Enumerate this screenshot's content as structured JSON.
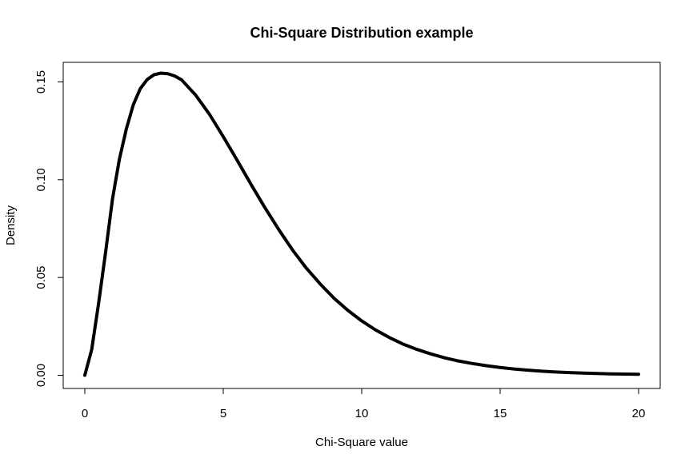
{
  "chart_data": {
    "type": "line",
    "title": "Chi-Square Distribution example",
    "xlabel": "Chi-Square value",
    "ylabel": "Density",
    "xlim": [
      0,
      20
    ],
    "ylim": [
      0,
      0.16
    ],
    "x_ticks": [
      0,
      5,
      10,
      15,
      20
    ],
    "x_tick_labels": [
      "0",
      "5",
      "10",
      "15",
      "20"
    ],
    "y_ticks": [
      0.0,
      0.05,
      0.1,
      0.15
    ],
    "y_tick_labels": [
      "0.00",
      "0.05",
      "0.10",
      "0.15"
    ],
    "grid": false,
    "legend": "none",
    "series": [
      {
        "x": [
          0,
          0.25,
          0.5,
          0.75,
          1,
          1.25,
          1.5,
          1.75,
          2,
          2.25,
          2.5,
          2.75,
          3,
          3.25,
          3.5,
          4,
          4.5,
          5,
          5.5,
          6,
          6.5,
          7,
          7.5,
          8,
          8.5,
          9,
          9.5,
          10,
          10.5,
          11,
          11.5,
          12,
          12.5,
          13,
          13.5,
          14,
          14.5,
          15,
          15.5,
          16,
          16.5,
          17,
          17.5,
          18,
          18.5,
          19,
          19.5,
          20
        ],
        "values": [
          0,
          0.0133,
          0.037,
          0.0629,
          0.0902,
          0.1106,
          0.126,
          0.1383,
          0.1465,
          0.1512,
          0.1537,
          0.1545,
          0.1542,
          0.153,
          0.151,
          0.1433,
          0.1335,
          0.122,
          0.11,
          0.0977,
          0.0858,
          0.0746,
          0.0641,
          0.0548,
          0.0467,
          0.0394,
          0.0332,
          0.0278,
          0.0232,
          0.0193,
          0.0159,
          0.0132,
          0.0109,
          0.0089,
          0.0073,
          0.006,
          0.0049,
          0.004,
          0.0032,
          0.0026,
          0.0021,
          0.0017,
          0.0014,
          0.0011,
          0.0009,
          0.0007,
          0.0006,
          0.0005
        ],
        "color": "#000000"
      }
    ]
  }
}
